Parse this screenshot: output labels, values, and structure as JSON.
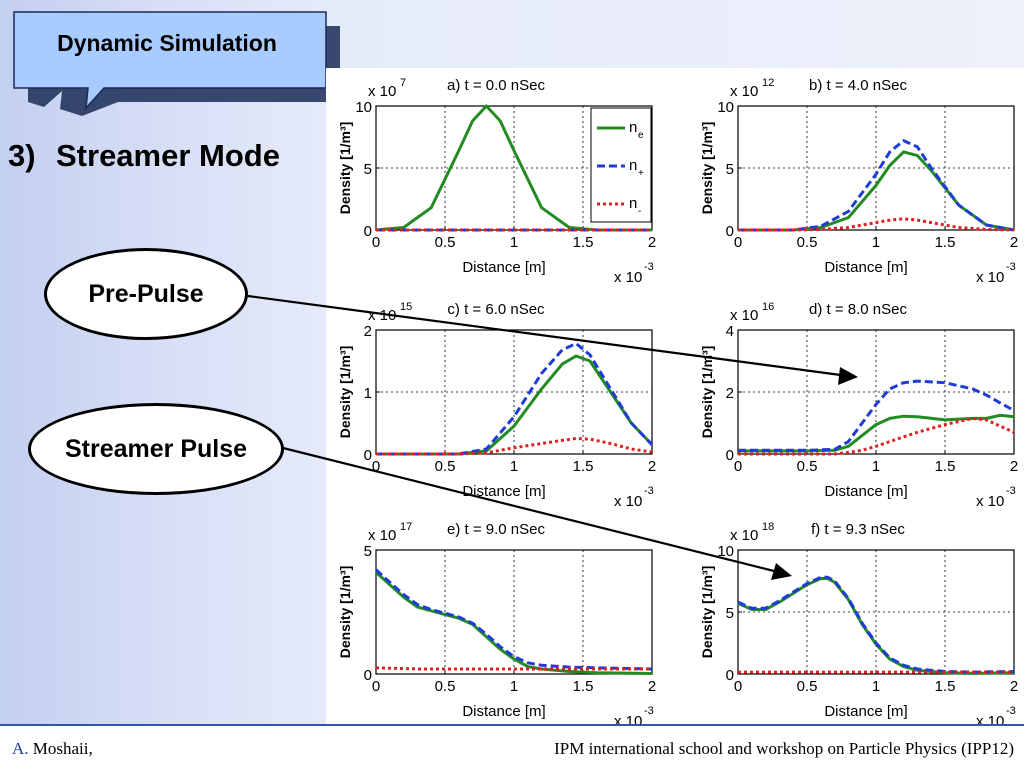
{
  "slide": {
    "callout_title": "Dynamic Simulation",
    "heading_number": "3)",
    "heading_text": "Streamer Mode",
    "pre_pulse_label": "Pre-Pulse",
    "streamer_pulse_label": "Streamer Pulse",
    "footer_author_initial": "A.",
    "footer_author_name": " Moshaii,",
    "footer_event": "IPM international school and workshop on Particle Physics (IPP12)"
  },
  "colors": {
    "ne": "#228b22",
    "nplus": "#1e3cd6",
    "nminus": "#e02020",
    "callout": "#a8ccff"
  },
  "legend": {
    "ne": "n",
    "ne_sub": "e",
    "nplus": "n",
    "nplus_sub": "+",
    "nminus": "n",
    "nminus_sub": "-"
  },
  "chart_data": [
    {
      "type": "line",
      "title": "a) t = 0.0 nSec",
      "exponent": "7",
      "xlabel": "Distance [m]",
      "ylabel": "Density [1/m³]",
      "x_multiplier": "x 10",
      "x_exponent": "-3",
      "xlim": [
        0,
        2
      ],
      "ylim": [
        0,
        10
      ],
      "xticks": [
        "0",
        "0.5",
        "1",
        "1.5",
        "2"
      ],
      "yticks": [
        "0",
        "5",
        "10"
      ],
      "grid": true,
      "legend": "top-right",
      "x": [
        0,
        0.2,
        0.4,
        0.6,
        0.7,
        0.8,
        0.9,
        1.0,
        1.2,
        1.4,
        1.6,
        2.0
      ],
      "series": [
        {
          "name": "ne",
          "values": [
            0,
            0.2,
            1.8,
            6.4,
            8.8,
            10,
            8.8,
            6.4,
            1.8,
            0.2,
            0,
            0
          ]
        },
        {
          "name": "n+",
          "values": [
            0,
            0,
            0,
            0,
            0,
            0,
            0,
            0,
            0,
            0,
            0,
            0
          ]
        },
        {
          "name": "n-",
          "values": [
            0,
            0,
            0,
            0,
            0,
            0,
            0,
            0,
            0,
            0,
            0,
            0
          ]
        }
      ]
    },
    {
      "type": "line",
      "title": "b) t = 4.0 nSec",
      "exponent": "12",
      "xlabel": "Distance [m]",
      "ylabel": "Density [1/m³]",
      "x_multiplier": "x 10",
      "x_exponent": "-3",
      "xlim": [
        0,
        2
      ],
      "ylim": [
        0,
        10
      ],
      "xticks": [
        "0",
        "0.5",
        "1",
        "1.5",
        "2"
      ],
      "yticks": [
        "0",
        "5",
        "10"
      ],
      "grid": true,
      "x": [
        0,
        0.4,
        0.6,
        0.8,
        1.0,
        1.1,
        1.2,
        1.3,
        1.4,
        1.6,
        1.8,
        2.0
      ],
      "series": [
        {
          "name": "ne",
          "values": [
            0,
            0,
            0.2,
            1.0,
            3.6,
            5.2,
            6.3,
            6.0,
            4.8,
            2.0,
            0.4,
            0
          ]
        },
        {
          "name": "n+",
          "values": [
            0,
            0,
            0.3,
            1.5,
            4.5,
            6.3,
            7.2,
            6.7,
            5.0,
            2.0,
            0.4,
            0
          ]
        },
        {
          "name": "n-",
          "values": [
            0,
            0,
            0.05,
            0.2,
            0.6,
            0.8,
            0.9,
            0.8,
            0.6,
            0.2,
            0.05,
            0
          ]
        }
      ]
    },
    {
      "type": "line",
      "title": "c) t = 6.0 nSec",
      "exponent": "15",
      "xlabel": "Distance [m]",
      "ylabel": "Density [1/m³]",
      "x_multiplier": "x 10",
      "x_exponent": "-3",
      "xlim": [
        0,
        2
      ],
      "ylim": [
        0,
        2
      ],
      "xticks": [
        "0",
        "0.5",
        "1",
        "1.5",
        "2"
      ],
      "yticks": [
        "0",
        "1",
        "2"
      ],
      "grid": true,
      "x": [
        0,
        0.6,
        0.8,
        1.0,
        1.2,
        1.35,
        1.45,
        1.55,
        1.7,
        1.85,
        2.0
      ],
      "series": [
        {
          "name": "ne",
          "values": [
            0,
            0,
            0.05,
            0.45,
            1.05,
            1.45,
            1.58,
            1.5,
            1.0,
            0.5,
            0.15
          ]
        },
        {
          "name": "n+",
          "values": [
            0,
            0,
            0.08,
            0.6,
            1.3,
            1.68,
            1.78,
            1.6,
            1.05,
            0.5,
            0.15
          ]
        },
        {
          "name": "n-",
          "values": [
            0,
            0,
            0.02,
            0.1,
            0.17,
            0.22,
            0.25,
            0.24,
            0.17,
            0.08,
            0.03
          ]
        }
      ]
    },
    {
      "type": "line",
      "title": "d) t = 8.0 nSec",
      "exponent": "16",
      "xlabel": "Distance [m]",
      "ylabel": "Density [1/m³]",
      "x_multiplier": "x 10",
      "x_exponent": "-3",
      "xlim": [
        0,
        2
      ],
      "ylim": [
        0,
        4
      ],
      "xticks": [
        "0",
        "0.5",
        "1",
        "1.5",
        "2"
      ],
      "yticks": [
        "0",
        "2",
        "4"
      ],
      "grid": true,
      "x": [
        0,
        0.5,
        0.7,
        0.8,
        0.9,
        1.0,
        1.1,
        1.2,
        1.3,
        1.5,
        1.7,
        1.8,
        1.9,
        2.0
      ],
      "series": [
        {
          "name": "ne",
          "values": [
            0.1,
            0.1,
            0.12,
            0.25,
            0.6,
            0.95,
            1.15,
            1.22,
            1.2,
            1.1,
            1.15,
            1.15,
            1.25,
            1.2
          ]
        },
        {
          "name": "n+",
          "values": [
            0.12,
            0.12,
            0.15,
            0.4,
            1.0,
            1.6,
            2.1,
            2.3,
            2.35,
            2.3,
            2.1,
            1.9,
            1.65,
            1.4
          ]
        },
        {
          "name": "n-",
          "values": [
            0,
            0,
            0,
            0.05,
            0.12,
            0.25,
            0.4,
            0.55,
            0.7,
            0.95,
            1.15,
            1.1,
            0.9,
            0.7
          ]
        }
      ]
    },
    {
      "type": "line",
      "title": "e) t = 9.0 nSec",
      "exponent": "17",
      "xlabel": "Distance [m]",
      "ylabel": "Density [1/m³]",
      "x_multiplier": "x 10",
      "x_exponent": "-3",
      "xlim": [
        0,
        2
      ],
      "ylim": [
        0,
        5
      ],
      "xticks": [
        "0",
        "0.5",
        "1",
        "1.5",
        "2"
      ],
      "yticks": [
        "0",
        "5"
      ],
      "grid": true,
      "x": [
        0,
        0.1,
        0.2,
        0.3,
        0.4,
        0.5,
        0.6,
        0.7,
        0.8,
        0.9,
        1.0,
        1.1,
        1.2,
        1.4,
        1.6,
        2.0
      ],
      "series": [
        {
          "name": "ne",
          "values": [
            4.1,
            3.6,
            3.1,
            2.7,
            2.55,
            2.4,
            2.25,
            2.0,
            1.5,
            1.0,
            0.6,
            0.3,
            0.2,
            0.1,
            0.05,
            0.02
          ]
        },
        {
          "name": "n+",
          "values": [
            4.2,
            3.7,
            3.2,
            2.8,
            2.6,
            2.45,
            2.3,
            2.05,
            1.6,
            1.1,
            0.7,
            0.45,
            0.35,
            0.28,
            0.25,
            0.2
          ]
        },
        {
          "name": "n-",
          "values": [
            0.25,
            0.23,
            0.22,
            0.2,
            0.2,
            0.2,
            0.2,
            0.2,
            0.2,
            0.2,
            0.2,
            0.2,
            0.2,
            0.2,
            0.2,
            0.2
          ]
        }
      ]
    },
    {
      "type": "line",
      "title": "f) t = 9.3 nSec",
      "exponent": "18",
      "xlabel": "Distance [m]",
      "ylabel": "Density [1/m³]",
      "x_multiplier": "x 10",
      "x_exponent": "-3",
      "xlim": [
        0,
        2
      ],
      "ylim": [
        0,
        10
      ],
      "xticks": [
        "0",
        "0.5",
        "1",
        "1.5",
        "2"
      ],
      "yticks": [
        "0",
        "5",
        "10"
      ],
      "grid": true,
      "x": [
        0,
        0.1,
        0.2,
        0.3,
        0.4,
        0.5,
        0.6,
        0.65,
        0.7,
        0.8,
        0.9,
        1.0,
        1.1,
        1.2,
        1.3,
        1.5,
        1.7,
        2.0
      ],
      "series": [
        {
          "name": "ne",
          "values": [
            5.7,
            5.2,
            5.2,
            5.8,
            6.5,
            7.2,
            7.7,
            7.7,
            7.4,
            6.0,
            4.0,
            2.4,
            1.2,
            0.6,
            0.3,
            0.1,
            0.05,
            0.1
          ]
        },
        {
          "name": "n+",
          "values": [
            5.8,
            5.3,
            5.3,
            5.9,
            6.6,
            7.3,
            7.8,
            7.8,
            7.5,
            6.1,
            4.1,
            2.5,
            1.3,
            0.7,
            0.4,
            0.2,
            0.15,
            0.2
          ]
        },
        {
          "name": "n-",
          "values": [
            0.15,
            0.15,
            0.15,
            0.15,
            0.15,
            0.15,
            0.15,
            0.15,
            0.15,
            0.15,
            0.15,
            0.15,
            0.15,
            0.15,
            0.15,
            0.15,
            0.15,
            0.15
          ]
        }
      ]
    }
  ]
}
